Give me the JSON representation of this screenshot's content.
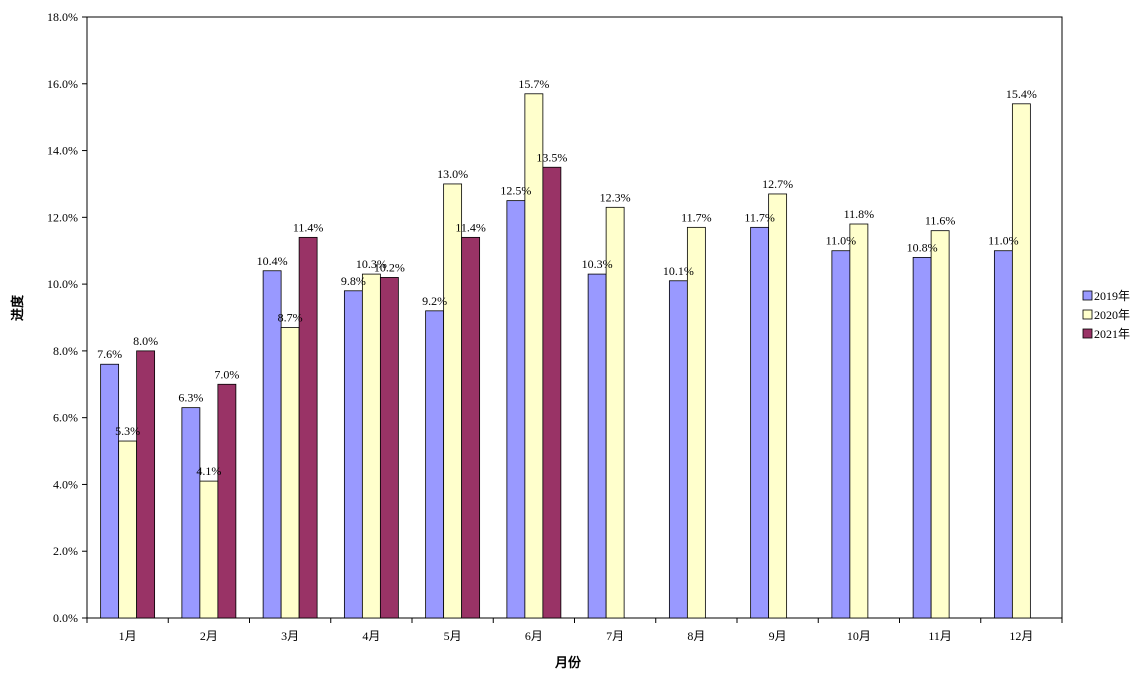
{
  "chart_data": {
    "type": "bar",
    "title": "",
    "xlabel": "月份",
    "ylabel": "进度",
    "categories": [
      "1月",
      "2月",
      "3月",
      "4月",
      "5月",
      "6月",
      "7月",
      "8月",
      "9月",
      "10月",
      "11月",
      "12月"
    ],
    "ylim": [
      0,
      18
    ],
    "yticks": [
      0,
      2,
      4,
      6,
      8,
      10,
      12,
      14,
      16,
      18
    ],
    "ytick_labels": [
      "0.0%",
      "2.0%",
      "4.0%",
      "6.0%",
      "8.0%",
      "10.0%",
      "12.0%",
      "14.0%",
      "16.0%",
      "18.0%"
    ],
    "grid": false,
    "legend_position": "right",
    "series": [
      {
        "name": "2019年",
        "color": "#9999ff",
        "values": [
          7.6,
          6.3,
          10.4,
          9.8,
          9.2,
          12.5,
          10.3,
          10.1,
          11.7,
          11.0,
          10.8,
          11.0
        ],
        "labels": [
          "7.6%",
          "6.3%",
          "10.4%",
          "9.8%",
          "9.2%",
          "12.5%",
          "10.3%",
          "10.1%",
          "11.7%",
          "11.0%",
          "10.8%",
          "11.0%"
        ]
      },
      {
        "name": "2020年",
        "color": "#ffffcc",
        "values": [
          5.3,
          4.1,
          8.7,
          10.3,
          13.0,
          15.7,
          12.3,
          11.7,
          12.7,
          11.8,
          11.6,
          15.4
        ],
        "labels": [
          "5.3%",
          "4.1%",
          "8.7%",
          "10.3%",
          "13.0%",
          "15.7%",
          "12.3%",
          "11.7%",
          "12.7%",
          "11.8%",
          "11.6%",
          "15.4%"
        ]
      },
      {
        "name": "2021年",
        "color": "#993366",
        "values": [
          8.0,
          7.0,
          11.4,
          10.2,
          11.4,
          13.5,
          null,
          null,
          null,
          null,
          null,
          null
        ],
        "labels": [
          "8.0%",
          "7.0%",
          "11.4%",
          "10.2%",
          "11.4%",
          "13.5%",
          "",
          "",
          "",
          "",
          "",
          ""
        ]
      }
    ]
  }
}
